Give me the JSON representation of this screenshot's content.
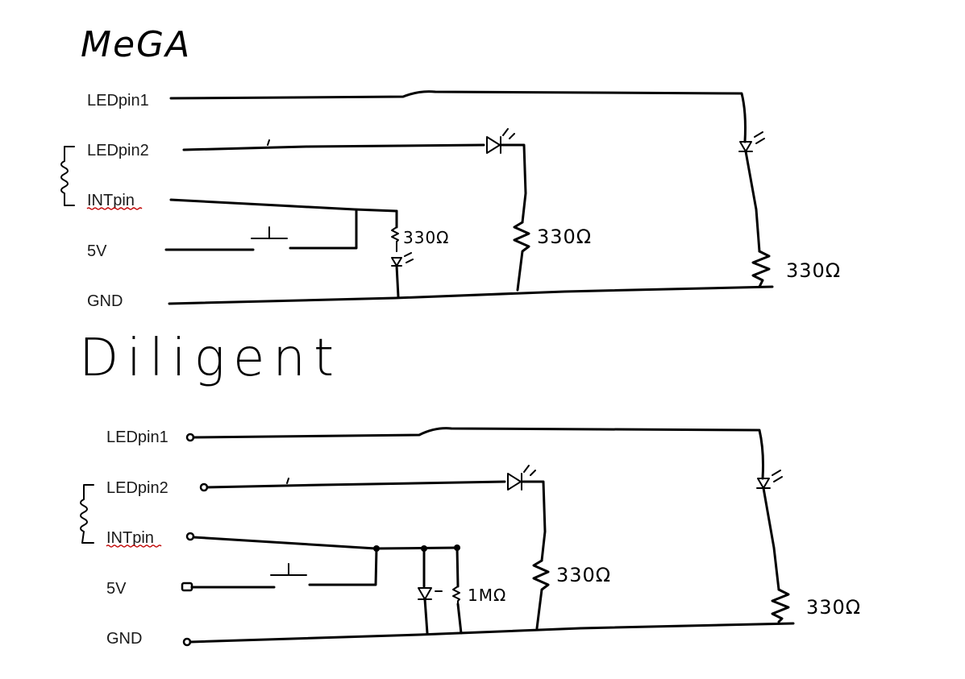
{
  "sections": {
    "mega": {
      "title": "MeGA",
      "pins": [
        "LEDpin1",
        "LEDpin2",
        "INTpin",
        "5V",
        "GND"
      ],
      "resistors": [
        "330Ω",
        "330Ω",
        "330Ω"
      ]
    },
    "diligent": {
      "title": "Diligent",
      "pins": [
        "LEDpin1",
        "LEDpin2",
        "INTpin",
        "5V",
        "GND"
      ],
      "resistors": [
        "1MΩ",
        "330Ω",
        "330Ω"
      ]
    }
  }
}
